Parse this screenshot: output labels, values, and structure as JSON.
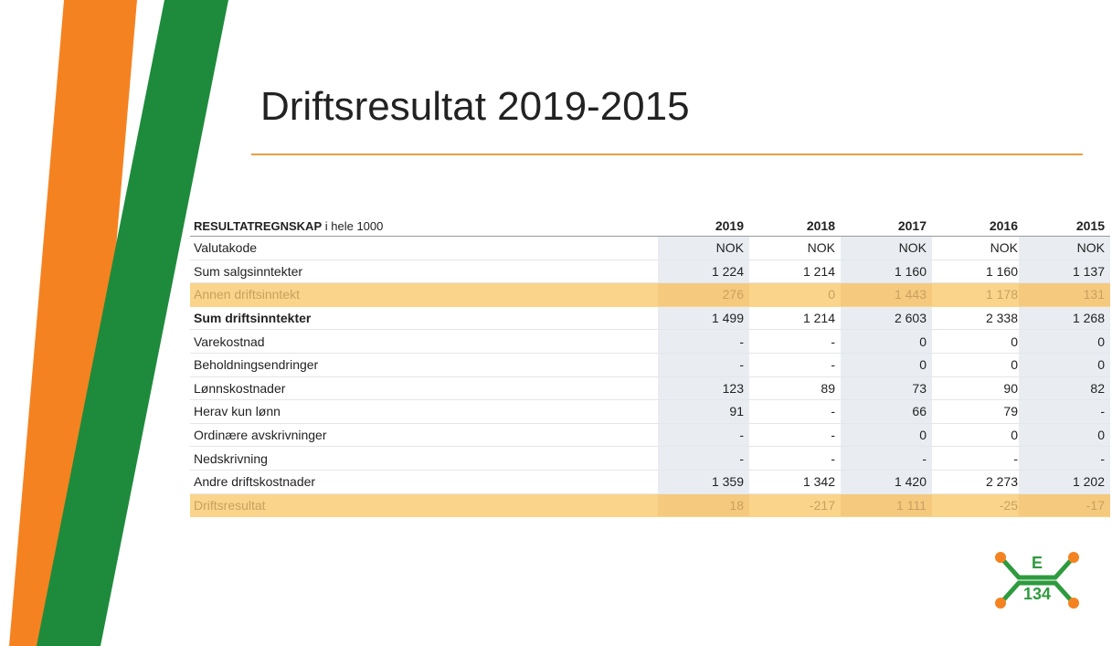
{
  "title": "Driftsresultat 2019-2015",
  "table": {
    "header": {
      "label": "RESULTATREGNSKAP",
      "unit": "i hele 1000",
      "years": [
        "2019",
        "2018",
        "2017",
        "2016",
        "2015"
      ]
    },
    "rows": [
      [
        "Valutakode",
        "NOK",
        "NOK",
        "NOK",
        "NOK",
        "NOK"
      ],
      [
        "Sum salgsinntekter",
        "1 224",
        "1 214",
        "1 160",
        "1 160",
        "1 137"
      ],
      [
        "Annen driftsinntekt",
        "276",
        "0",
        "1 443",
        "1 178",
        "131"
      ],
      [
        "Sum driftsinntekter",
        "1 499",
        "1 214",
        "2 603",
        "2 338",
        "1 268"
      ],
      [
        "Varekostnad",
        "-",
        "-",
        "0",
        "0",
        "0"
      ],
      [
        "Beholdningsendringer",
        "-",
        "-",
        "0",
        "0",
        "0"
      ],
      [
        "Lønnskostnader",
        "123",
        "89",
        "73",
        "90",
        "82"
      ],
      [
        "Herav kun lønn",
        "91",
        "-",
        "66",
        "79",
        "-"
      ],
      [
        "Ordinære avskrivninger",
        "-",
        "-",
        "0",
        "0",
        "0"
      ],
      [
        "Nedskrivning",
        "-",
        "-",
        "-",
        "-",
        "-"
      ],
      [
        "Andre driftskostnader",
        "1 359",
        "1 342",
        "1 420",
        "2 273",
        "1 202"
      ],
      [
        "Driftsresultat",
        "18",
        "-217",
        "1 111",
        "-25",
        "-17"
      ]
    ]
  },
  "logo": {
    "letter": "E",
    "number": "134"
  }
}
